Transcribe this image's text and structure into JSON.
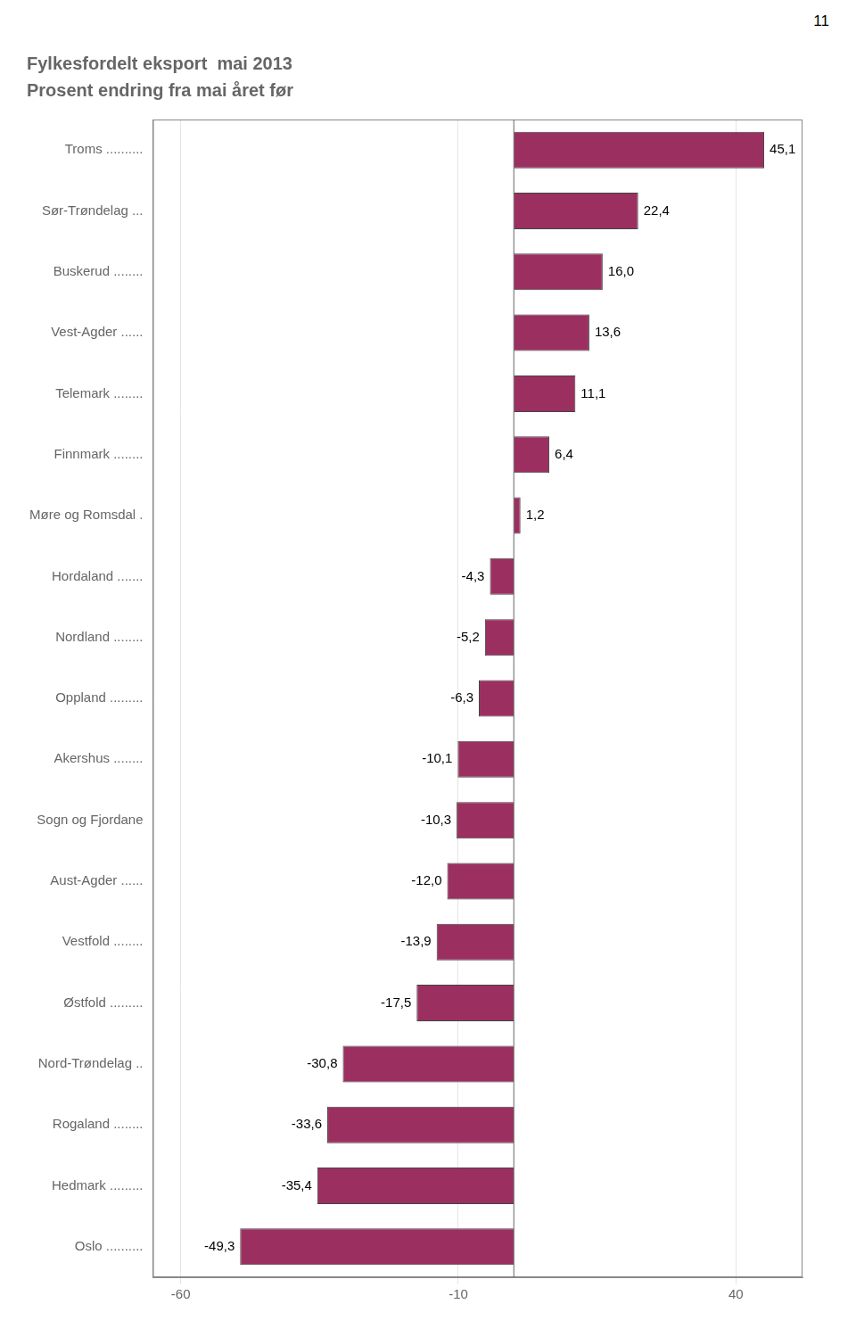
{
  "chart_data": {
    "type": "bar",
    "orientation": "horizontal",
    "title": "Fylkesfordelt eksport  mai 2013",
    "subtitle": "Prosent endring fra mai året før",
    "annotations": [
      "11"
    ],
    "categories": [
      "Troms ..........",
      "Sør-Trøndelag ...",
      "Buskerud ........",
      "Vest-Agder ......",
      "Telemark ........",
      "Finnmark ........",
      "Møre og Romsdal .",
      "Hordaland .......",
      "Nordland ........",
      "Oppland .........",
      "Akershus ........",
      "Sogn og Fjordane",
      "Aust-Agder ......",
      "Vestfold ........",
      "Østfold .........",
      "Nord-Trøndelag ..",
      "Rogaland ........",
      "Hedmark .........",
      "Oslo .........."
    ],
    "values": [
      45.1,
      22.4,
      16.0,
      13.6,
      11.1,
      6.4,
      1.2,
      -4.3,
      -5.2,
      -6.3,
      -10.1,
      -10.3,
      -12.0,
      -13.9,
      -17.5,
      -30.8,
      -33.6,
      -35.4,
      -49.3
    ],
    "value_labels": [
      "45,1",
      "22,4",
      "16,0",
      "13,6",
      "11,1",
      "6,4",
      "1,2",
      "-4,3",
      "-5,2",
      "-6,3",
      "-10,1",
      "-10,3",
      "-12,0",
      "-13,9",
      "-17,5",
      "-30,8",
      "-33,6",
      "-35,4",
      "-49,3"
    ],
    "data_labels": true,
    "color": "#9b3060",
    "xlim": [
      -65,
      52
    ],
    "xticks": [
      -60,
      -10,
      40
    ],
    "grid": true
  }
}
